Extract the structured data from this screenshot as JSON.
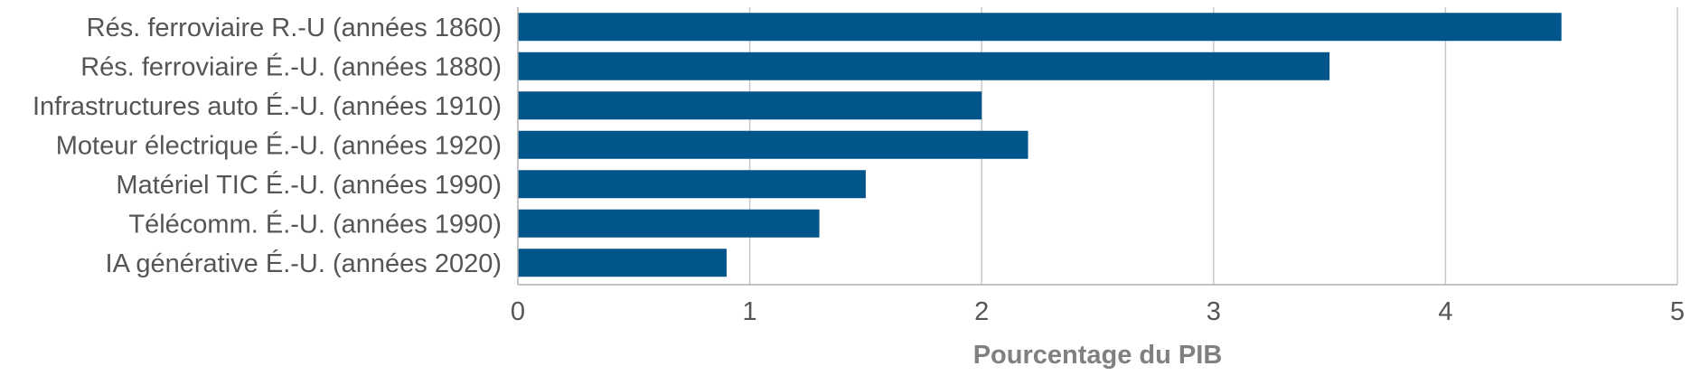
{
  "chart_data": {
    "type": "bar",
    "orientation": "horizontal",
    "title": "",
    "xlabel": "Pourcentage du PIB",
    "ylabel": "",
    "xlim": [
      0,
      5
    ],
    "xticks": [
      "0",
      "1",
      "2",
      "3",
      "4",
      "5"
    ],
    "grid": true,
    "legend": "none",
    "categories": [
      "Rés. ferroviaire R.-U (années 1860)",
      "Rés. ferroviaire É.-U. (années 1880)",
      "Infrastructures auto É.-U. (années 1910)",
      "Moteur électrique É.-U. (années 1920)",
      "Matériel TIC É.-U. (années 1990)",
      "Télécomm. É.-U. (années 1990)",
      "IA générative É.-U. (années 2020)"
    ],
    "values": [
      4.5,
      3.5,
      2.0,
      2.2,
      1.5,
      1.3,
      0.9
    ],
    "colors": {
      "bar": "#02558b"
    }
  }
}
